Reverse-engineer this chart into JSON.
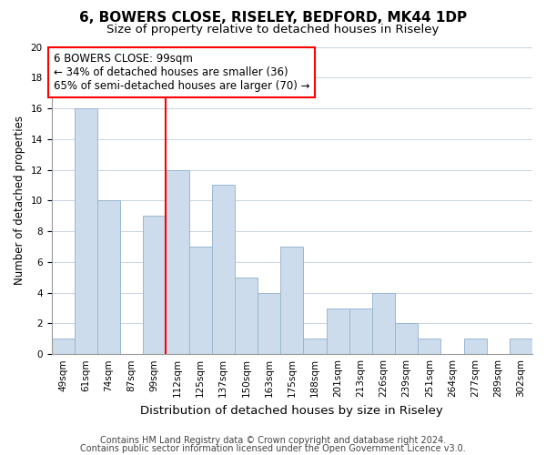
{
  "title": "6, BOWERS CLOSE, RISELEY, BEDFORD, MK44 1DP",
  "subtitle": "Size of property relative to detached houses in Riseley",
  "xlabel": "Distribution of detached houses by size in Riseley",
  "ylabel": "Number of detached properties",
  "bar_labels": [
    "49sqm",
    "61sqm",
    "74sqm",
    "87sqm",
    "99sqm",
    "112sqm",
    "125sqm",
    "137sqm",
    "150sqm",
    "163sqm",
    "175sqm",
    "188sqm",
    "201sqm",
    "213sqm",
    "226sqm",
    "239sqm",
    "251sqm",
    "264sqm",
    "277sqm",
    "289sqm",
    "302sqm"
  ],
  "bar_values": [
    1,
    16,
    10,
    0,
    9,
    12,
    7,
    11,
    5,
    4,
    7,
    1,
    3,
    3,
    4,
    2,
    1,
    0,
    1,
    0,
    1
  ],
  "bar_color": "#ccdcec",
  "bar_edgecolor": "#9ab8d0",
  "vline_color": "red",
  "annotation_text": "6 BOWERS CLOSE: 99sqm\n← 34% of detached houses are smaller (36)\n65% of semi-detached houses are larger (70) →",
  "annotation_box_edgecolor": "red",
  "annotation_fontsize": 8.5,
  "ylim": [
    0,
    20
  ],
  "yticks": [
    0,
    2,
    4,
    6,
    8,
    10,
    12,
    14,
    16,
    18,
    20
  ],
  "grid_color": "#c8d4e4",
  "footer1": "Contains HM Land Registry data © Crown copyright and database right 2024.",
  "footer2": "Contains public sector information licensed under the Open Government Licence v3.0.",
  "title_fontsize": 11,
  "subtitle_fontsize": 9.5,
  "xlabel_fontsize": 9.5,
  "ylabel_fontsize": 8.5,
  "tick_fontsize": 7.5,
  "footer_fontsize": 7
}
